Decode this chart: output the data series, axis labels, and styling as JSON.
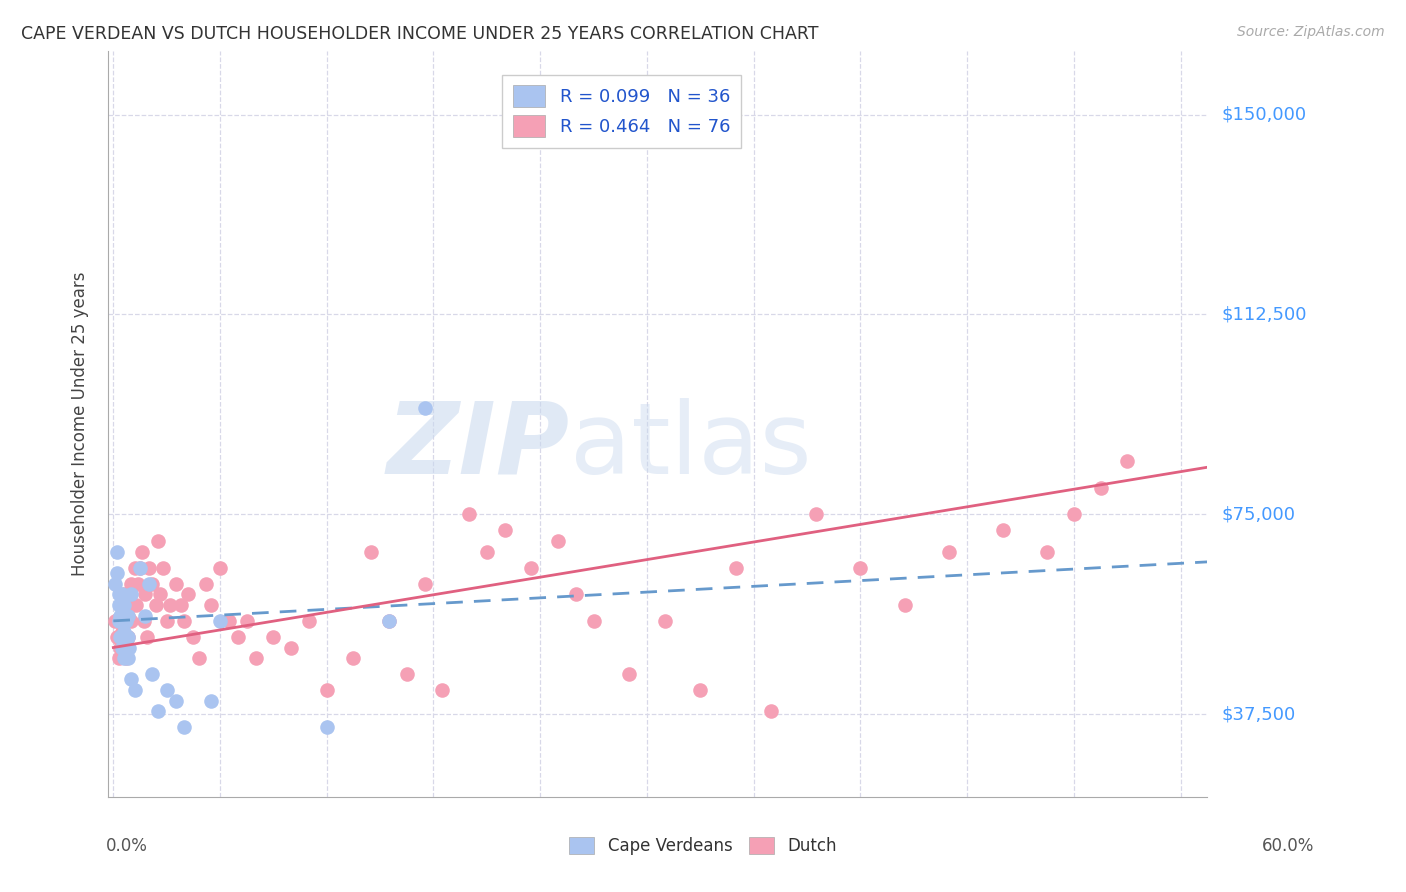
{
  "title": "CAPE VERDEAN VS DUTCH HOUSEHOLDER INCOME UNDER 25 YEARS CORRELATION CHART",
  "source": "Source: ZipAtlas.com",
  "ylabel": "Householder Income Under 25 years",
  "ytick_labels": [
    "$37,500",
    "$75,000",
    "$112,500",
    "$150,000"
  ],
  "ytick_values": [
    37500,
    75000,
    112500,
    150000
  ],
  "ymin": 22000,
  "ymax": 162000,
  "xmin": -0.003,
  "xmax": 0.615,
  "legend_cv": "R = 0.099   N = 36",
  "legend_dutch": "R = 0.464   N = 76",
  "cv_color": "#aac4f0",
  "dutch_color": "#f5a0b5",
  "cv_line_color": "#6699cc",
  "dutch_line_color": "#e06080",
  "background_color": "#ffffff",
  "grid_color": "#d8d8e8",
  "cv_line_intercept": 55000,
  "cv_line_slope": 18000,
  "dutch_line_intercept": 50000,
  "dutch_line_slope": 55000,
  "cv_x": [
    0.001,
    0.002,
    0.002,
    0.003,
    0.003,
    0.003,
    0.004,
    0.004,
    0.005,
    0.005,
    0.005,
    0.006,
    0.006,
    0.006,
    0.007,
    0.007,
    0.008,
    0.008,
    0.008,
    0.009,
    0.01,
    0.01,
    0.012,
    0.015,
    0.018,
    0.02,
    0.022,
    0.025,
    0.03,
    0.035,
    0.04,
    0.055,
    0.06,
    0.12,
    0.155,
    0.175
  ],
  "cv_y": [
    62000,
    68000,
    64000,
    60000,
    58000,
    55000,
    56000,
    52000,
    60000,
    55000,
    50000,
    58000,
    53000,
    48000,
    55000,
    52000,
    56000,
    52000,
    48000,
    50000,
    44000,
    60000,
    42000,
    65000,
    56000,
    62000,
    45000,
    38000,
    42000,
    40000,
    35000,
    40000,
    55000,
    35000,
    55000,
    95000
  ],
  "dutch_x": [
    0.001,
    0.002,
    0.003,
    0.003,
    0.004,
    0.005,
    0.005,
    0.006,
    0.006,
    0.007,
    0.007,
    0.008,
    0.008,
    0.009,
    0.01,
    0.01,
    0.012,
    0.013,
    0.014,
    0.015,
    0.016,
    0.017,
    0.018,
    0.019,
    0.02,
    0.022,
    0.024,
    0.025,
    0.026,
    0.028,
    0.03,
    0.032,
    0.035,
    0.038,
    0.04,
    0.042,
    0.045,
    0.048,
    0.052,
    0.055,
    0.06,
    0.065,
    0.07,
    0.075,
    0.08,
    0.09,
    0.1,
    0.11,
    0.12,
    0.135,
    0.145,
    0.155,
    0.165,
    0.175,
    0.185,
    0.2,
    0.21,
    0.22,
    0.235,
    0.25,
    0.26,
    0.27,
    0.29,
    0.31,
    0.33,
    0.35,
    0.37,
    0.395,
    0.42,
    0.445,
    0.47,
    0.5,
    0.525,
    0.54,
    0.555,
    0.57
  ],
  "dutch_y": [
    55000,
    52000,
    48000,
    55000,
    50000,
    53000,
    58000,
    52000,
    60000,
    55000,
    48000,
    56000,
    52000,
    58000,
    55000,
    62000,
    65000,
    58000,
    62000,
    65000,
    68000,
    55000,
    60000,
    52000,
    65000,
    62000,
    58000,
    70000,
    60000,
    65000,
    55000,
    58000,
    62000,
    58000,
    55000,
    60000,
    52000,
    48000,
    62000,
    58000,
    65000,
    55000,
    52000,
    55000,
    48000,
    52000,
    50000,
    55000,
    42000,
    48000,
    68000,
    55000,
    45000,
    62000,
    42000,
    75000,
    68000,
    72000,
    65000,
    70000,
    60000,
    55000,
    45000,
    55000,
    42000,
    65000,
    38000,
    75000,
    65000,
    58000,
    68000,
    72000,
    68000,
    75000,
    80000,
    85000
  ]
}
